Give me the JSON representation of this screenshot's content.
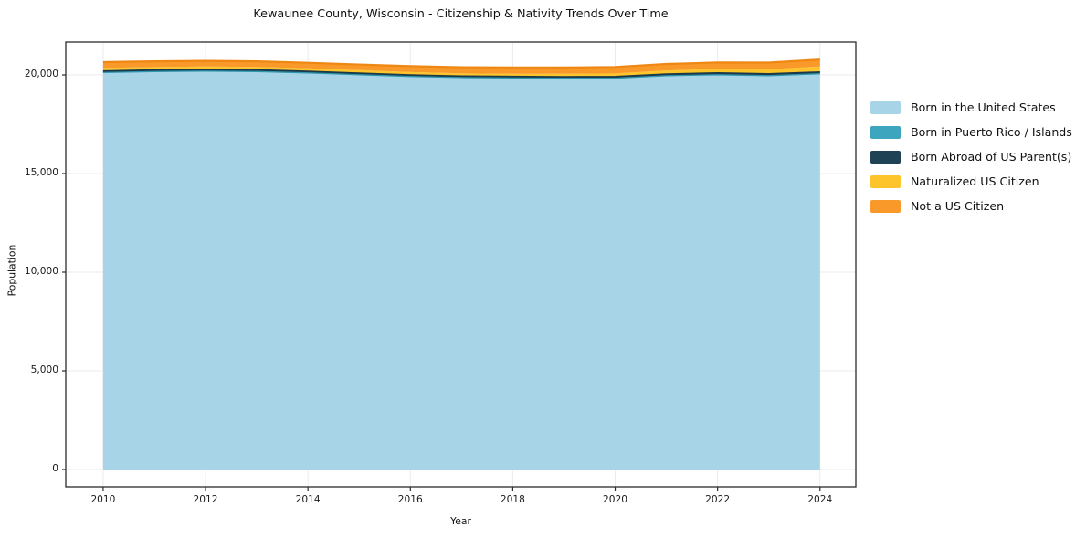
{
  "title": "Kewaunee County, Wisconsin - Citizenship & Nativity Trends Over Time",
  "chart_data": {
    "type": "area",
    "stacked": true,
    "title": "Kewaunee County, Wisconsin - Citizenship & Nativity Trends Over Time",
    "xlabel": "Year",
    "ylabel": "Population",
    "x": [
      2010,
      2011,
      2012,
      2013,
      2014,
      2015,
      2016,
      2017,
      2018,
      2019,
      2020,
      2021,
      2022,
      2023,
      2024
    ],
    "series": [
      {
        "name": "Born in the United States",
        "color": "#a8d4e8",
        "edge": "#a8d4e8",
        "values": [
          20100,
          20150,
          20170,
          20150,
          20080,
          19990,
          19900,
          19850,
          19830,
          19820,
          19820,
          19940,
          19990,
          19940,
          20030
        ]
      },
      {
        "name": "Born in Puerto Rico / Islands",
        "color": "#3da5bd",
        "edge": "#2f96ae",
        "values": [
          20,
          20,
          20,
          20,
          20,
          20,
          20,
          15,
          15,
          15,
          15,
          20,
          20,
          25,
          30
        ]
      },
      {
        "name": "Born Abroad of US Parent(s)",
        "color": "#1f4254",
        "edge": "#1a3a4a",
        "values": [
          80,
          80,
          85,
          90,
          85,
          80,
          75,
          75,
          75,
          75,
          80,
          85,
          90,
          90,
          90
        ]
      },
      {
        "name": "Naturalized US Citizen",
        "color": "#fdc42c",
        "edge": "#fdc42c",
        "values": [
          150,
          150,
          150,
          150,
          150,
          150,
          150,
          140,
          140,
          145,
          160,
          180,
          200,
          230,
          280
        ]
      },
      {
        "name": "Not a US Citizen",
        "color": "#f8992a",
        "edge": "#ef8713",
        "values": [
          300,
          290,
          290,
          280,
          280,
          290,
          300,
          310,
          320,
          320,
          330,
          330,
          330,
          340,
          350
        ]
      }
    ],
    "x_ticks": [
      {
        "v": 2010,
        "label": "2010"
      },
      {
        "v": 2012,
        "label": "2012"
      },
      {
        "v": 2014,
        "label": "2014"
      },
      {
        "v": 2016,
        "label": "2016"
      },
      {
        "v": 2018,
        "label": "2018"
      },
      {
        "v": 2020,
        "label": "2020"
      },
      {
        "v": 2022,
        "label": "2022"
      },
      {
        "v": 2024,
        "label": "2024"
      }
    ],
    "y_ticks": [
      {
        "v": 0,
        "label": "0"
      },
      {
        "v": 5000,
        "label": "5,000"
      },
      {
        "v": 10000,
        "label": "10,000"
      },
      {
        "v": 15000,
        "label": "15,000"
      },
      {
        "v": 20000,
        "label": "20,000"
      }
    ],
    "xlim": [
      2009.27,
      2024.7
    ],
    "ylim": [
      -880,
      21667
    ],
    "grid": true,
    "grid_color": "#ebebeb",
    "spine_color": "#2b2b2b",
    "background": "#ffffff",
    "legend_position": "right"
  }
}
